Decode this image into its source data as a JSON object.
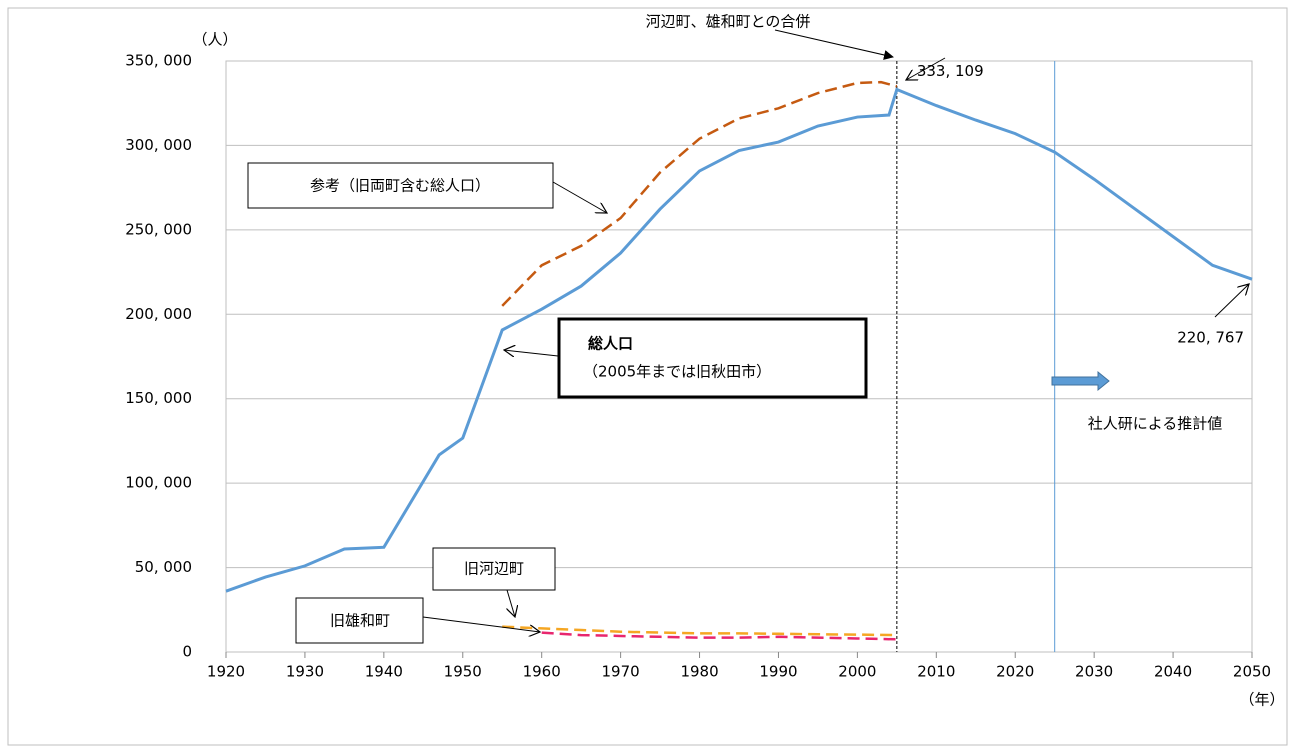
{
  "chart_data": {
    "type": "line",
    "y_unit": "（人）",
    "x_unit": "（年）",
    "xlim": [
      1920,
      2050
    ],
    "ylim": [
      0,
      350000
    ],
    "xticks": [
      1920,
      1930,
      1940,
      1950,
      1960,
      1970,
      1980,
      1990,
      2000,
      2010,
      2020,
      2030,
      2040,
      2050
    ],
    "yticks": [
      0,
      {
        "value": 50000,
        "label": "50, 000"
      },
      {
        "value": 100000,
        "label": "100, 000"
      },
      {
        "value": 150000,
        "label": "150, 000"
      },
      {
        "value": 200000,
        "label": "200, 000"
      },
      {
        "value": 250000,
        "label": "250, 000"
      },
      {
        "value": 300000,
        "label": "300, 000"
      },
      {
        "value": 350000,
        "label": "350, 000"
      }
    ],
    "grid": true,
    "annotations": {
      "merger": "河辺町、雄和町との合併",
      "total_note": "（2005年までは旧秋田市）",
      "projection": "社人研による推計値"
    },
    "series": [
      {
        "name": "総人口",
        "color": "#5b9bd5",
        "dashed": false,
        "x": [
          1920,
          1925,
          1930,
          1935,
          1940,
          1947,
          1950,
          1955,
          1960,
          1965,
          1970,
          1975,
          1980,
          1985,
          1990,
          1995,
          2000,
          2004,
          2005,
          2010,
          2015,
          2020,
          2025,
          2030,
          2035,
          2040,
          2045,
          2050
        ],
        "values": [
          36000,
          44400,
          51000,
          61000,
          62000,
          116700,
          126700,
          190700,
          203000,
          216700,
          236300,
          262300,
          284900,
          297000,
          302000,
          311500,
          316800,
          318000,
          333109,
          323600,
          315000,
          307000,
          296000,
          280000,
          263000,
          246000,
          229000,
          220767
        ],
        "value_labels": [
          null,
          null,
          null,
          null,
          null,
          null,
          null,
          null,
          null,
          null,
          null,
          null,
          null,
          null,
          null,
          null,
          null,
          null,
          "333, 109",
          null,
          null,
          null,
          null,
          null,
          null,
          null,
          null,
          "220, 767"
        ]
      },
      {
        "name": "参考（旧両町含む総人口）",
        "color": "#c55a11",
        "dashed": true,
        "x": [
          1955,
          1960,
          1965,
          1970,
          1975,
          1980,
          1985,
          1990,
          1995,
          2000,
          2003,
          2005
        ],
        "values": [
          205000,
          229000,
          240500,
          257000,
          284000,
          304000,
          316000,
          322000,
          331000,
          337000,
          337500,
          335000
        ]
      },
      {
        "name": "旧河辺町",
        "color": "#f5a623",
        "dashed": true,
        "x": [
          1955,
          1960,
          1965,
          1970,
          1975,
          1980,
          1985,
          1990,
          1995,
          2000,
          2005
        ],
        "values": [
          15000,
          14000,
          13000,
          12000,
          11500,
          11000,
          11000,
          10800,
          10500,
          10300,
          10000
        ]
      },
      {
        "name": "旧雄和町",
        "color": "#e8266e",
        "dashed": true,
        "x": [
          1960,
          1965,
          1970,
          1975,
          1980,
          1985,
          1990,
          1995,
          2000,
          2005
        ],
        "values": [
          11500,
          10000,
          9500,
          9000,
          8500,
          8500,
          9000,
          8500,
          8000,
          7500
        ]
      }
    ]
  }
}
